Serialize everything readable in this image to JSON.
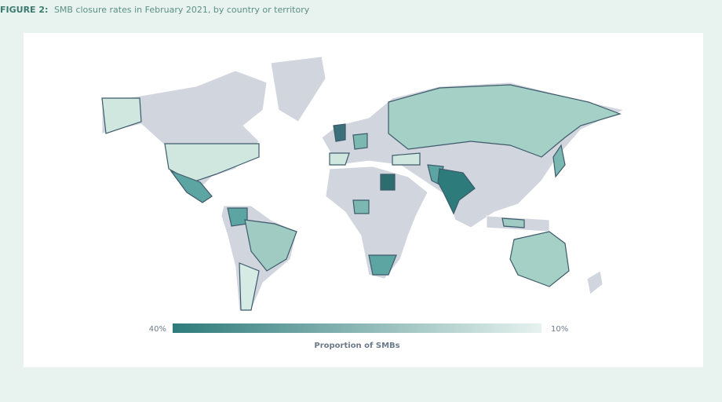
{
  "figure": {
    "label": "FIGURE 2:",
    "title": "SMB closure rates in February 2021, by country or territory"
  },
  "legend": {
    "title": "Proportion of SMBs",
    "range": [
      40,
      10
    ],
    "ticks": [
      {
        "value": 40,
        "label": "40%"
      },
      {
        "value": 10,
        "label": "10%"
      }
    ],
    "colors": [
      "#2e7b7b",
      "#e6f2ee"
    ]
  }
}
